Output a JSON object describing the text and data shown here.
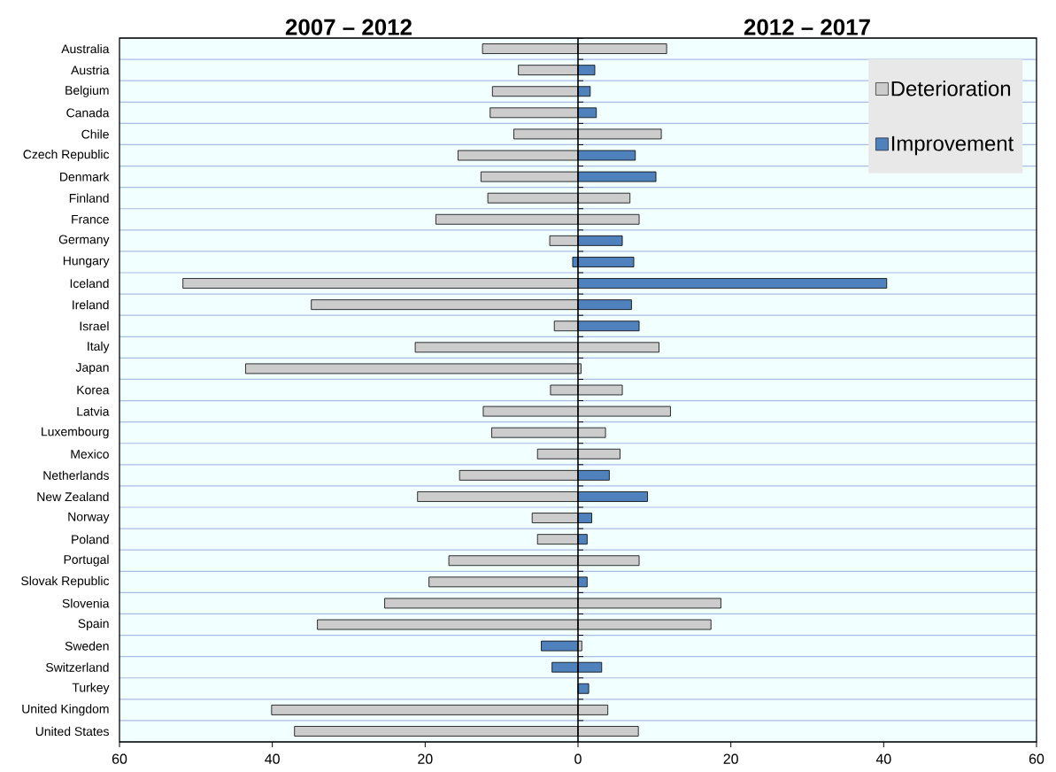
{
  "chart_data": {
    "type": "bar",
    "orientation": "horizontal",
    "stacked": true,
    "annotations": [
      "2007 – 2012",
      "2012 – 2017"
    ],
    "categories": [
      "Australia",
      "Austria",
      "Belgium",
      "Canada",
      "Chile",
      "Czech Republic",
      "Denmark",
      "Finland",
      "France",
      "Germany",
      "Hungary",
      "Iceland",
      "Ireland",
      "Israel",
      "Italy",
      "Japan",
      "Korea",
      "Latvia",
      "Luxembourg",
      "Mexico",
      "Netherlands",
      "New Zealand",
      "Norway",
      "Poland",
      "Portugal",
      "Slovak Republic",
      "Slovenia",
      "Spain",
      "Sweden",
      "Switzerland",
      "Turkey",
      "United Kingdom",
      "United States"
    ],
    "series": [
      {
        "name": "Deterioration",
        "color": "#cccccc",
        "values": [
          -12.5,
          -7.8,
          -11.2,
          -11.5,
          -8.4,
          -15.7,
          -12.7,
          -11.8,
          -18.6,
          -3.7,
          null,
          -51.7,
          -34.9,
          -3.1,
          -21.3,
          -43.5,
          -3.6,
          -12.4,
          -11.3,
          -5.3,
          -15.5,
          -21.0,
          -6.0,
          -5.3,
          -16.9,
          -19.5,
          -25.3,
          -34.1,
          null,
          null,
          null,
          -40.1,
          -37.1
        ]
      },
      {
        "name": "Improvement",
        "color": "#4f81bd",
        "values": [
          null,
          null,
          null,
          null,
          null,
          null,
          null,
          null,
          null,
          null,
          -0.7,
          null,
          null,
          null,
          null,
          null,
          null,
          null,
          null,
          null,
          null,
          null,
          null,
          null,
          null,
          null,
          null,
          null,
          -4.8,
          -3.4,
          null,
          null,
          null
        ]
      },
      {
        "color": "#cccccc",
        "values": [
          11.6,
          null,
          null,
          null,
          10.9,
          null,
          null,
          6.8,
          8.0,
          null,
          null,
          null,
          null,
          null,
          10.6,
          0.4,
          5.8,
          12.1,
          3.6,
          5.5,
          null,
          null,
          null,
          null,
          8.0,
          null,
          18.7,
          17.4,
          0.5,
          null,
          null,
          3.9,
          7.9
        ]
      },
      {
        "color": "#4f81bd",
        "values": [
          null,
          2.2,
          1.6,
          2.4,
          null,
          7.5,
          10.2,
          null,
          null,
          5.8,
          7.3,
          40.4,
          7.0,
          8.0,
          null,
          null,
          null,
          null,
          null,
          null,
          4.1,
          9.1,
          1.8,
          1.2,
          null,
          1.2,
          null,
          null,
          null,
          3.1,
          1.4,
          null,
          null
        ]
      }
    ],
    "xlim": [
      -60,
      60
    ],
    "xticks": [
      {
        "value": -60,
        "label": "60"
      },
      {
        "value": -40,
        "label": "40"
      },
      {
        "value": -20,
        "label": "20"
      },
      0,
      20,
      40,
      60
    ],
    "grid": "y",
    "legend": "top right"
  }
}
